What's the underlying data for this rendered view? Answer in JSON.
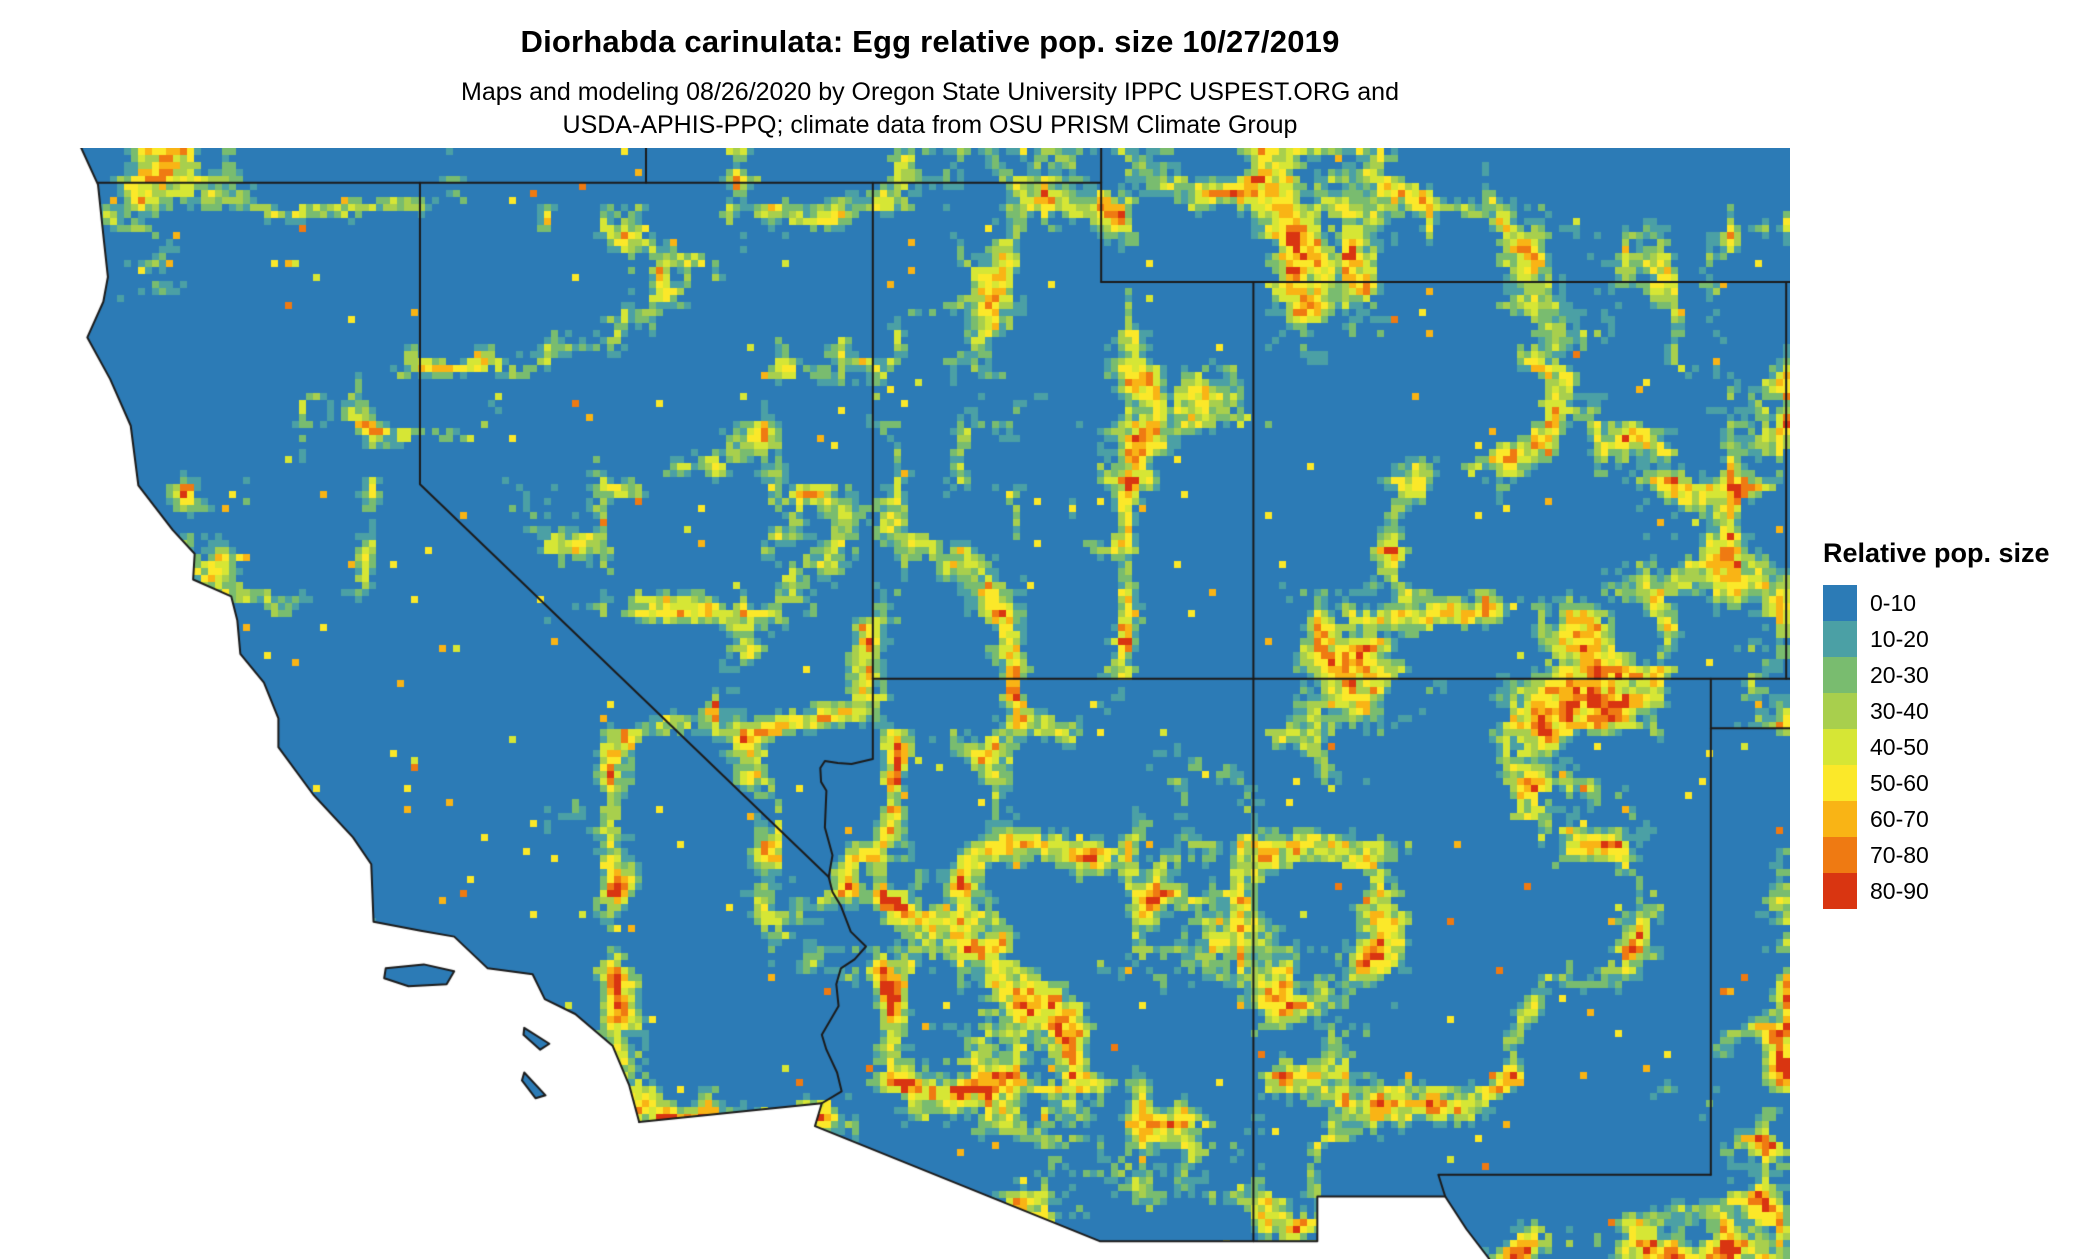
{
  "title": "Diorhabda carinulata: Egg relative pop. size 10/27/2019",
  "subtitle_line1": "Maps and modeling 08/26/2020 by Oregon State University IPPC USPEST.ORG and",
  "subtitle_line2": "USDA-APHIS-PPQ; climate data from OSU PRISM Climate Group",
  "legend": {
    "title": "Relative pop. size",
    "bins": [
      "0-10",
      "10-20",
      "20-30",
      "30-40",
      "40-50",
      "50-60",
      "60-70",
      "70-80",
      "80-90"
    ],
    "colors": [
      "#2C7BB6",
      "#4BA0A5",
      "#79BC6F",
      "#A8CF4D",
      "#D6E635",
      "#FBE829",
      "#F9B415",
      "#EF7A12",
      "#D93511"
    ]
  },
  "chart_data": {
    "type": "heatmap",
    "title": "Diorhabda carinulata: Egg relative pop. size 10/27/2019",
    "legend_title": "Relative pop. size",
    "bins": [
      "0-10",
      "10-20",
      "20-30",
      "30-40",
      "40-50",
      "50-60",
      "60-70",
      "70-80",
      "80-90"
    ],
    "colors": [
      "#2C7BB6",
      "#4BA0A5",
      "#79BC6F",
      "#A8CF4D",
      "#D6E635",
      "#FBE829",
      "#F9B415",
      "#EF7A12",
      "#D93511"
    ],
    "region": "Southwestern United States (CA, NV, UT, AZ, CO, NM, southern OR/ID, SW WY, W TX)",
    "description": "Raster map dominated by blue (0-10) with dendritic yellow-orange-red bands along mountain ranges and plateaus; ocean and Mexico are blank white; black state and coast boundary lines.",
    "extent": {
      "lon_min": -124.9,
      "lon_max": -102.0,
      "lat_min": 31.15,
      "lat_max": 42.35
    },
    "cell_size_px": 7,
    "background_color": "#ffffff",
    "border_color": "#1b1b1b",
    "borders": {
      "coast": [
        [
          -124.45,
          42.35
        ],
        [
          -124.23,
          41.98
        ],
        [
          -124.15,
          41.4
        ],
        [
          -124.1,
          41.05
        ],
        [
          -124.16,
          40.8
        ],
        [
          -124.37,
          40.44
        ],
        [
          -124.07,
          40.02
        ],
        [
          -123.8,
          39.55
        ],
        [
          -123.7,
          38.95
        ],
        [
          -123.25,
          38.5
        ],
        [
          -122.96,
          38.26
        ],
        [
          -122.98,
          38.0
        ],
        [
          -122.48,
          37.83
        ],
        [
          -122.4,
          37.59
        ],
        [
          -122.36,
          37.25
        ],
        [
          -122.05,
          36.96
        ],
        [
          -121.86,
          36.6
        ],
        [
          -121.86,
          36.31
        ],
        [
          -121.4,
          35.83
        ],
        [
          -120.88,
          35.4
        ],
        [
          -120.64,
          35.13
        ],
        [
          -120.61,
          34.55
        ],
        [
          -119.99,
          34.46
        ],
        [
          -119.55,
          34.4
        ],
        [
          -119.11,
          34.08
        ],
        [
          -118.52,
          34.02
        ],
        [
          -118.36,
          33.77
        ],
        [
          -117.96,
          33.62
        ],
        [
          -117.47,
          33.3
        ],
        [
          -117.25,
          32.9
        ],
        [
          -117.12,
          32.53
        ]
      ],
      "mexico": [
        [
          -117.12,
          32.53
        ],
        [
          -114.72,
          32.72
        ],
        [
          -114.81,
          32.49
        ],
        [
          -111.07,
          31.33
        ],
        [
          -108.21,
          31.33
        ],
        [
          -108.21,
          31.78
        ],
        [
          -106.53,
          31.78
        ],
        [
          -106.25,
          31.45
        ],
        [
          -105.95,
          31.15
        ]
      ],
      "state_lines": [
        [
          [
            -124.23,
            42.0
          ],
          [
            -111.05,
            42.0
          ]
        ],
        [
          [
            -117.03,
            42.35
          ],
          [
            -117.03,
            42.0
          ]
        ],
        [
          [
            -111.05,
            42.35
          ],
          [
            -111.05,
            41.0
          ]
        ],
        [
          [
            -111.05,
            41.0
          ],
          [
            -102.0,
            41.0
          ]
        ],
        [
          [
            -114.05,
            42.0
          ],
          [
            -114.05,
            37.0
          ]
        ],
        [
          [
            -114.05,
            37.0
          ],
          [
            -102.0,
            37.0
          ]
        ],
        [
          [
            -109.05,
            41.0
          ],
          [
            -109.05,
            37.0
          ]
        ],
        [
          [
            -109.05,
            37.0
          ],
          [
            -109.05,
            31.33
          ]
        ],
        [
          [
            -120.0,
            42.0
          ],
          [
            -120.0,
            38.96
          ],
          [
            -114.63,
            35.0
          ]
        ],
        [
          [
            -114.05,
            37.0
          ],
          [
            -114.05,
            36.19
          ],
          [
            -114.33,
            36.14
          ],
          [
            -114.51,
            36.15
          ],
          [
            -114.68,
            36.17
          ],
          [
            -114.74,
            36.1
          ],
          [
            -114.73,
            35.96
          ],
          [
            -114.66,
            35.87
          ],
          [
            -114.68,
            35.5
          ],
          [
            -114.58,
            35.22
          ],
          [
            -114.63,
            35.0
          ],
          [
            -114.58,
            34.85
          ],
          [
            -114.47,
            34.71
          ],
          [
            -114.34,
            34.45
          ],
          [
            -114.14,
            34.3
          ],
          [
            -114.29,
            34.17
          ],
          [
            -114.47,
            34.08
          ],
          [
            -114.53,
            33.92
          ],
          [
            -114.5,
            33.7
          ],
          [
            -114.72,
            33.41
          ],
          [
            -114.66,
            33.26
          ],
          [
            -114.52,
            33.03
          ],
          [
            -114.46,
            32.84
          ],
          [
            -114.72,
            32.72
          ]
        ],
        [
          [
            -102.05,
            41.0
          ],
          [
            -102.05,
            37.0
          ]
        ],
        [
          [
            -103.04,
            37.0
          ],
          [
            -103.04,
            32.0
          ]
        ],
        [
          [
            -103.04,
            36.5
          ],
          [
            -102.0,
            36.5
          ]
        ],
        [
          [
            -103.04,
            32.0
          ],
          [
            -106.62,
            32.0
          ],
          [
            -106.53,
            31.78
          ]
        ]
      ],
      "islands": [
        [
          [
            -120.45,
            34.08
          ],
          [
            -119.95,
            34.12
          ],
          [
            -119.55,
            34.05
          ],
          [
            -119.65,
            33.92
          ],
          [
            -120.15,
            33.9
          ],
          [
            -120.47,
            33.98
          ]
        ],
        [
          [
            -118.63,
            33.48
          ],
          [
            -118.3,
            33.32
          ],
          [
            -118.42,
            33.26
          ],
          [
            -118.64,
            33.41
          ]
        ],
        [
          [
            -118.63,
            33.03
          ],
          [
            -118.35,
            32.8
          ],
          [
            -118.48,
            32.77
          ],
          [
            -118.66,
            32.95
          ]
        ]
      ]
    }
  }
}
